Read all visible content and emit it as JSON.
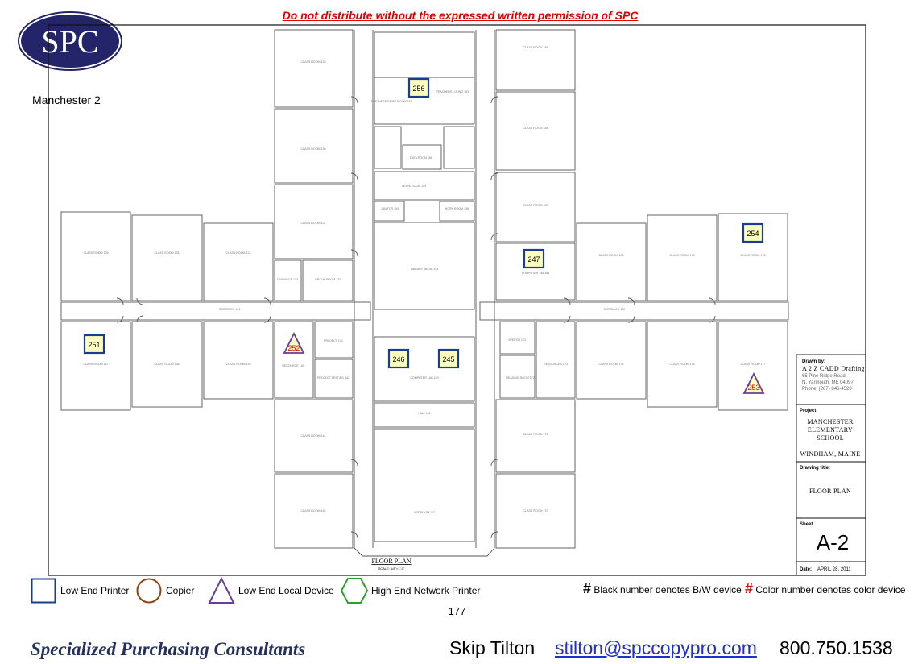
{
  "header": {
    "warning": "Do not distribute without the expressed written permission of SPC",
    "logo_text": "SPC",
    "site_name": "Manchester 2"
  },
  "plan": {
    "caption": "FLOOR PLAN",
    "scale": "SCALE: 1/8\"=1'-0\"",
    "rooms": [
      "CLASS ROOM 128",
      "CLASS ROOM 130",
      "CLASS ROOM 131",
      "CLASS ROOM 185",
      "CLASS ROOM 184",
      "CLASS ROOM 183",
      "CLASS ROOM 126",
      "CLASS ROOM 135",
      "CLASS ROOM 124",
      "GUIDANCE 133",
      "GROUP ROOM 132",
      "LIBRARY MEDIA 153",
      "COMPUTER 148 181",
      "CLASS ROOM 180",
      "CLASS ROOM 179",
      "CLASS ROOM 178",
      "CORRIDOR 143",
      "CORRIDOR 182",
      "CLASS ROOM 137",
      "CLASS ROOM 138",
      "CLASS ROOM 139",
      "RESOURCE 140",
      "PROJECT 141",
      "PROJECT TESTING 142",
      "COMPUTER LAB 150",
      "SPEECH 173",
      "READING ROOM 172",
      "RESOURCES 174",
      "CLASS ROOM 175",
      "CLASS ROOM 176",
      "CLASS ROOM 177",
      "CLASS ROOM 144",
      "CLASS ROOM 145",
      "HALL 151",
      "CLASS ROOM 171",
      "CLASS ROOM 170",
      "ART ROOM 167",
      "TEACHERS WORK ROOM 161",
      "TEACHERS LOUNG 163",
      "WORK ROOM 159",
      "WORK ROOM 158",
      "JANITOR 154",
      "DATA ROOM 156"
    ]
  },
  "devices": [
    {
      "id": "256",
      "kind": "low-end-printer"
    },
    {
      "id": "247",
      "kind": "low-end-printer"
    },
    {
      "id": "254",
      "kind": "low-end-printer"
    },
    {
      "id": "251",
      "kind": "low-end-printer"
    },
    {
      "id": "252",
      "kind": "low-end-local-device"
    },
    {
      "id": "246",
      "kind": "low-end-printer"
    },
    {
      "id": "245",
      "kind": "low-end-printer"
    },
    {
      "id": "253",
      "kind": "low-end-local-device"
    }
  ],
  "title_block": {
    "drawn_by_label": "Drawn by:",
    "drafter": "A 2 Z CADD Drafting",
    "address_1": "65 Pine Ridge Road",
    "address_2": "N. Yarmouth, ME 04097",
    "phone": "Phone: (207) 846-4528",
    "project_label": "Project:",
    "project_1": "MANCHESTER",
    "project_2": "ELEMENTARY",
    "project_3": "SCHOOL",
    "location": "WINDHAM, MAINE",
    "drawing_title_label": "Drawing title:",
    "drawing_title": "FLOOR PLAN",
    "sheet_label": "Sheet",
    "sheet": "A-2",
    "date_label": "Date:",
    "date": "APRIL 28, 2011"
  },
  "legend": {
    "items": [
      {
        "label": "Low End Printer",
        "icon": "square-icon",
        "color": "#1a3d8f"
      },
      {
        "label": "Copier",
        "icon": "circle-icon",
        "color": "#8b4513"
      },
      {
        "label": "Low End Local Device",
        "icon": "triangle-icon",
        "color": "#6a3d9a"
      },
      {
        "label": "High End Network Printer",
        "icon": "hexagon-icon",
        "color": "#2ca02c"
      }
    ],
    "bw_hash": "#",
    "bw_note": "Black number denotes B/W device",
    "color_hash": "#",
    "color_note": "Color number denotes color device"
  },
  "page_number": "177",
  "footer": {
    "company": "Specialized Purchasing Consultants",
    "contact_name": "Skip Tilton",
    "email": "stilton@spccopypro.com",
    "phone": "800.750.1538"
  },
  "colors": {
    "warning": "#e00000",
    "logo": "#24246b",
    "email": "#1f2fd0",
    "device_fill": "#ffffc0"
  }
}
